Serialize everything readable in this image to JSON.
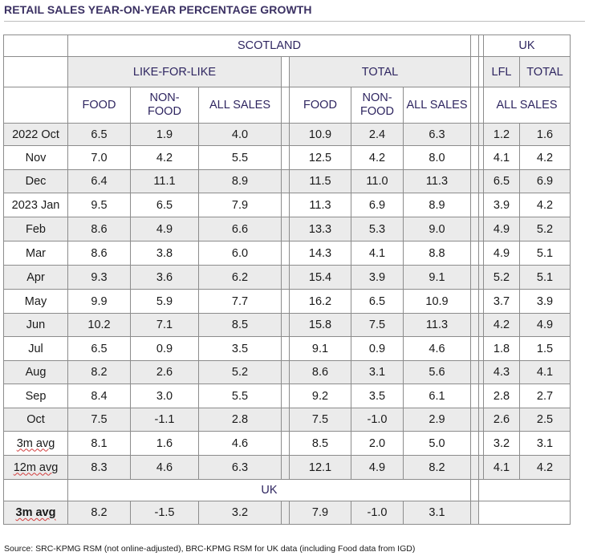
{
  "title": "RETAIL SALES YEAR-ON-YEAR PERCENTAGE GROWTH",
  "headers": {
    "scotland": "SCOTLAND",
    "uk": "UK",
    "like_for_like": "LIKE-FOR-LIKE",
    "total": "TOTAL",
    "lfl": "LFL",
    "uk_total": "TOTAL",
    "food": "FOOD",
    "non_food_1": "NON-",
    "non_food_2": "FOOD",
    "all_sales": "ALL SALES",
    "uk_all_sales": "ALL SALES",
    "uk_section": "UK"
  },
  "rows": [
    {
      "label": "2022 Oct",
      "v": [
        "6.5",
        "1.9",
        "4.0",
        "10.9",
        "2.4",
        "6.3",
        "1.2",
        "1.6"
      ]
    },
    {
      "label": "Nov",
      "v": [
        "7.0",
        "4.2",
        "5.5",
        "12.5",
        "4.2",
        "8.0",
        "4.1",
        "4.2"
      ]
    },
    {
      "label": "Dec",
      "v": [
        "6.4",
        "11.1",
        "8.9",
        "11.5",
        "11.0",
        "11.3",
        "6.5",
        "6.9"
      ]
    },
    {
      "label": "2023 Jan",
      "v": [
        "9.5",
        "6.5",
        "7.9",
        "11.3",
        "6.9",
        "8.9",
        "3.9",
        "4.2"
      ]
    },
    {
      "label": "Feb",
      "v": [
        "8.6",
        "4.9",
        "6.6",
        "13.3",
        "5.3",
        "9.0",
        "4.9",
        "5.2"
      ]
    },
    {
      "label": "Mar",
      "v": [
        "8.6",
        "3.8",
        "6.0",
        "14.3",
        "4.1",
        "8.8",
        "4.9",
        "5.1"
      ]
    },
    {
      "label": "Apr",
      "v": [
        "9.3",
        "3.6",
        "6.2",
        "15.4",
        "3.9",
        "9.1",
        "5.2",
        "5.1"
      ]
    },
    {
      "label": "May",
      "v": [
        "9.9",
        "5.9",
        "7.7",
        "16.2",
        "6.5",
        "10.9",
        "3.7",
        "3.9"
      ]
    },
    {
      "label": "Jun",
      "v": [
        "10.2",
        "7.1",
        "8.5",
        "15.8",
        "7.5",
        "11.3",
        "4.2",
        "4.9"
      ]
    },
    {
      "label": "Jul",
      "v": [
        "6.5",
        "0.9",
        "3.5",
        "9.1",
        "0.9",
        "4.6",
        "1.8",
        "1.5"
      ]
    },
    {
      "label": "Aug",
      "v": [
        "8.2",
        "2.6",
        "5.2",
        "8.6",
        "3.1",
        "5.6",
        "4.3",
        "4.1"
      ]
    },
    {
      "label": "Sep",
      "v": [
        "8.4",
        "3.0",
        "5.5",
        "9.2",
        "3.5",
        "6.1",
        "2.8",
        "2.7"
      ]
    },
    {
      "label": "Oct",
      "v": [
        "7.5",
        "-1.1",
        "2.8",
        "7.5",
        "-1.0",
        "2.9",
        "2.6",
        "2.5"
      ]
    },
    {
      "label": "3m avg",
      "v": [
        "8.1",
        "1.6",
        "4.6",
        "8.5",
        "2.0",
        "5.0",
        "3.2",
        "3.1"
      ]
    },
    {
      "label": "12m avg",
      "v": [
        "8.3",
        "4.6",
        "6.3",
        "12.1",
        "4.9",
        "8.2",
        "4.1",
        "4.2"
      ]
    }
  ],
  "uk_row": {
    "label": "3m avg",
    "v": [
      "8.2",
      "-1.5",
      "3.2",
      "7.9",
      "-1.0",
      "3.1"
    ]
  },
  "source": "Source: SRC-KPMG RSM (not online-adjusted), BRC-KPMG RSM for UK data (including Food data from IGD)"
}
